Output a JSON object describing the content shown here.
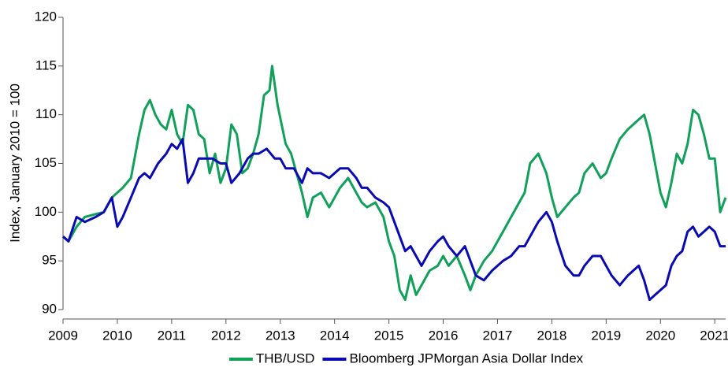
{
  "chart_data": {
    "type": "line",
    "y_label": "Index, January 2010 = 100",
    "xlim": [
      2009,
      2021.2
    ],
    "xticks": [
      2009,
      2010,
      2011,
      2012,
      2013,
      2014,
      2015,
      2016,
      2017,
      2018,
      2019,
      2020,
      2021
    ],
    "ylim": [
      90,
      120
    ],
    "yticks": [
      90,
      95,
      100,
      105,
      110,
      115,
      120
    ],
    "legend": "bottom",
    "series": [
      {
        "name": "THB/USD",
        "color": "#11a05a",
        "x": [
          2009.0,
          2009.1,
          2009.25,
          2009.4,
          2009.6,
          2009.75,
          2009.9,
          2010.0,
          2010.1,
          2010.25,
          2010.4,
          2010.5,
          2010.6,
          2010.7,
          2010.8,
          2010.9,
          2011.0,
          2011.1,
          2011.2,
          2011.3,
          2011.4,
          2011.5,
          2011.6,
          2011.7,
          2011.8,
          2011.9,
          2012.0,
          2012.1,
          2012.2,
          2012.3,
          2012.4,
          2012.5,
          2012.6,
          2012.7,
          2012.8,
          2012.85,
          2012.95,
          2013.1,
          2013.2,
          2013.3,
          2013.4,
          2013.5,
          2013.6,
          2013.75,
          2013.9,
          2014.0,
          2014.1,
          2014.25,
          2014.4,
          2014.5,
          2014.6,
          2014.75,
          2014.9,
          2015.0,
          2015.1,
          2015.2,
          2015.3,
          2015.4,
          2015.5,
          2015.6,
          2015.75,
          2015.9,
          2016.0,
          2016.1,
          2016.25,
          2016.4,
          2016.5,
          2016.6,
          2016.75,
          2016.9,
          2017.0,
          2017.1,
          2017.25,
          2017.4,
          2017.5,
          2017.6,
          2017.75,
          2017.9,
          2018.0,
          2018.1,
          2018.25,
          2018.4,
          2018.5,
          2018.6,
          2018.75,
          2018.9,
          2019.0,
          2019.1,
          2019.25,
          2019.4,
          2019.5,
          2019.6,
          2019.7,
          2019.8,
          2019.9,
          2020.0,
          2020.1,
          2020.2,
          2020.3,
          2020.4,
          2020.5,
          2020.6,
          2020.7,
          2020.8,
          2020.9,
          2021.0,
          2021.1,
          2021.2
        ],
        "values": [
          97.5,
          97,
          98.5,
          99.5,
          99.8,
          100,
          101.5,
          102,
          102.5,
          103.5,
          108,
          110.5,
          111.5,
          110,
          109,
          108.5,
          110.5,
          108,
          107,
          111,
          110.5,
          108,
          107.5,
          104,
          106,
          103,
          104.5,
          109,
          108,
          104,
          104.5,
          106,
          108,
          112,
          112.5,
          115,
          111,
          107,
          106,
          104,
          102,
          99.5,
          101.5,
          102,
          100.5,
          101.5,
          102.5,
          103.5,
          102,
          101,
          100.5,
          101,
          99.5,
          97,
          95.5,
          92,
          91,
          93.5,
          91.5,
          92.5,
          94,
          94.5,
          95.5,
          94.5,
          95.5,
          93.5,
          92,
          93.5,
          95,
          96,
          97,
          98,
          99.5,
          101,
          102,
          105,
          106,
          104,
          101.5,
          99.5,
          100.5,
          101.5,
          102,
          104,
          105,
          103.5,
          104,
          105.5,
          107.5,
          108.5,
          109,
          109.5,
          110,
          108,
          105,
          102,
          100.5,
          103,
          106,
          105,
          107,
          110.5,
          110,
          108,
          105.5,
          105.5,
          100,
          101.5
        ]
      },
      {
        "name": "Bloomberg JPMorgan Asia Dollar Index",
        "color": "#0a0ab4",
        "x": [
          2009.0,
          2009.1,
          2009.25,
          2009.4,
          2009.6,
          2009.75,
          2009.9,
          2010.0,
          2010.1,
          2010.25,
          2010.4,
          2010.5,
          2010.6,
          2010.75,
          2010.9,
          2011.0,
          2011.1,
          2011.2,
          2011.3,
          2011.4,
          2011.5,
          2011.6,
          2011.75,
          2011.9,
          2012.0,
          2012.1,
          2012.25,
          2012.4,
          2012.5,
          2012.6,
          2012.75,
          2012.9,
          2013.0,
          2013.1,
          2013.25,
          2013.4,
          2013.5,
          2013.6,
          2013.75,
          2013.9,
          2014.0,
          2014.1,
          2014.25,
          2014.4,
          2014.5,
          2014.6,
          2014.75,
          2014.9,
          2015.0,
          2015.1,
          2015.2,
          2015.3,
          2015.4,
          2015.5,
          2015.6,
          2015.75,
          2015.9,
          2016.0,
          2016.1,
          2016.25,
          2016.4,
          2016.5,
          2016.6,
          2016.75,
          2016.9,
          2017.0,
          2017.1,
          2017.25,
          2017.4,
          2017.5,
          2017.6,
          2017.75,
          2017.9,
          2018.0,
          2018.1,
          2018.25,
          2018.4,
          2018.5,
          2018.6,
          2018.75,
          2018.9,
          2019.0,
          2019.1,
          2019.25,
          2019.4,
          2019.5,
          2019.6,
          2019.7,
          2019.8,
          2019.9,
          2020.0,
          2020.1,
          2020.2,
          2020.3,
          2020.4,
          2020.5,
          2020.6,
          2020.7,
          2020.8,
          2020.9,
          2021.0,
          2021.1,
          2021.2
        ],
        "values": [
          97.5,
          97,
          99.5,
          99,
          99.5,
          100,
          101.5,
          98.5,
          99.5,
          101.5,
          103.5,
          104,
          103.5,
          105,
          106,
          107,
          106.5,
          107.5,
          103,
          104,
          105.5,
          105.5,
          105.5,
          105,
          105,
          103,
          104,
          105.5,
          106,
          106,
          106.5,
          105.5,
          105.5,
          104.5,
          104.5,
          103,
          104.5,
          104,
          104,
          103.5,
          104,
          104.5,
          104.5,
          103.5,
          102.5,
          102.5,
          101.5,
          101,
          100.5,
          99,
          97.5,
          96,
          96.5,
          95.5,
          94.5,
          96,
          97,
          97.5,
          96.5,
          95.5,
          96.5,
          95,
          93.5,
          93,
          94,
          94.5,
          95,
          95.5,
          96.5,
          96.5,
          97.5,
          99,
          100,
          99,
          97,
          94.5,
          93.5,
          93.5,
          94.5,
          95.5,
          95.5,
          94.5,
          93.5,
          92.5,
          93.5,
          94,
          94.5,
          93,
          91,
          91.5,
          92,
          92.5,
          94.5,
          95.5,
          96,
          98,
          98.5,
          97.5,
          98,
          98.5,
          98,
          96.5,
          96.5
        ]
      }
    ]
  }
}
